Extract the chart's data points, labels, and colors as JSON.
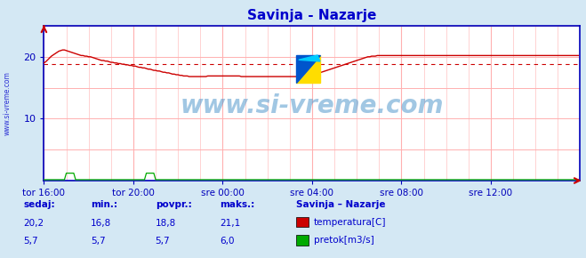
{
  "title": "Savinja - Nazarje",
  "title_color": "#0000cc",
  "bg_color": "#d4e8f4",
  "plot_bg_color": "#ffffff",
  "grid_color": "#ffb0b0",
  "axis_color": "#0000bb",
  "text_color": "#0000cc",
  "xlim": [
    0,
    288
  ],
  "ylim": [
    0,
    25
  ],
  "yticks": [
    10,
    20
  ],
  "xtick_labels": [
    "tor 16:00",
    "tor 20:00",
    "sre 00:00",
    "sre 04:00",
    "sre 08:00",
    "sre 12:00"
  ],
  "xtick_positions": [
    0,
    48,
    96,
    144,
    192,
    240
  ],
  "avg_line_y": 18.8,
  "avg_line_color": "#cc0000",
  "temp_color": "#cc0000",
  "flow_color": "#00aa00",
  "watermark_text": "www.si-vreme.com",
  "watermark_color": "#5599cc",
  "ylabel_text": "www.si-vreme.com",
  "legend_title": "Savinja – Nazarje",
  "legend_items": [
    "temperatura[C]",
    "pretok[m3/s]"
  ],
  "legend_colors": [
    "#cc0000",
    "#00aa00"
  ],
  "stats_labels": [
    "sedaj:",
    "min.:",
    "povpr.:",
    "maks.:"
  ],
  "stats_temp": [
    "20,2",
    "16,8",
    "18,8",
    "21,1"
  ],
  "stats_flow": [
    "5,7",
    "5,7",
    "5,7",
    "6,0"
  ],
  "temp_data": [
    19.0,
    19.2,
    19.5,
    19.8,
    20.1,
    20.3,
    20.5,
    20.7,
    20.9,
    21.0,
    21.1,
    21.1,
    21.0,
    20.9,
    20.8,
    20.7,
    20.6,
    20.5,
    20.4,
    20.3,
    20.2,
    20.2,
    20.1,
    20.1,
    20.0,
    20.0,
    19.9,
    19.8,
    19.7,
    19.6,
    19.5,
    19.4,
    19.4,
    19.3,
    19.3,
    19.2,
    19.1,
    19.1,
    19.0,
    19.0,
    18.9,
    18.9,
    18.8,
    18.8,
    18.7,
    18.7,
    18.6,
    18.6,
    18.5,
    18.5,
    18.4,
    18.3,
    18.3,
    18.2,
    18.2,
    18.1,
    18.0,
    18.0,
    17.9,
    17.8,
    17.8,
    17.7,
    17.7,
    17.6,
    17.5,
    17.5,
    17.4,
    17.4,
    17.3,
    17.2,
    17.2,
    17.1,
    17.1,
    17.0,
    17.0,
    16.9,
    16.9,
    16.9,
    16.8,
    16.8,
    16.8,
    16.8,
    16.8,
    16.8,
    16.8,
    16.8,
    16.8,
    16.8,
    16.9,
    16.9,
    16.9,
    16.9,
    16.9,
    16.9,
    16.9,
    16.9,
    16.9,
    16.9,
    16.9,
    16.9,
    16.9,
    16.9,
    16.9,
    16.9,
    16.9,
    16.9,
    16.8,
    16.8,
    16.8,
    16.8,
    16.8,
    16.8,
    16.8,
    16.8,
    16.8,
    16.8,
    16.8,
    16.8,
    16.8,
    16.8,
    16.8,
    16.8,
    16.8,
    16.8,
    16.8,
    16.8,
    16.8,
    16.8,
    16.8,
    16.8,
    16.8,
    16.8,
    16.8,
    16.8,
    16.8,
    16.8,
    16.8,
    16.9,
    16.9,
    16.9,
    17.0,
    17.0,
    17.0,
    17.0,
    17.1,
    17.1,
    17.2,
    17.3,
    17.4,
    17.5,
    17.6,
    17.7,
    17.8,
    17.9,
    18.0,
    18.1,
    18.2,
    18.3,
    18.4,
    18.5,
    18.6,
    18.7,
    18.8,
    18.9,
    19.0,
    19.1,
    19.2,
    19.3,
    19.4,
    19.5,
    19.6,
    19.7,
    19.8,
    19.9,
    20.0,
    20.0,
    20.1,
    20.1,
    20.1,
    20.2,
    20.2,
    20.2,
    20.2,
    20.2,
    20.2,
    20.2,
    20.2,
    20.2,
    20.2,
    20.2,
    20.2,
    20.2,
    20.2,
    20.2,
    20.2,
    20.2,
    20.2,
    20.2,
    20.2,
    20.2,
    20.2,
    20.2,
    20.2,
    20.2,
    20.2,
    20.2,
    20.2,
    20.2,
    20.2,
    20.2,
    20.2,
    20.2,
    20.2,
    20.2,
    20.2,
    20.2,
    20.2,
    20.2,
    20.2,
    20.2,
    20.2,
    20.2,
    20.2,
    20.2,
    20.2,
    20.2,
    20.2,
    20.2,
    20.2,
    20.2,
    20.2,
    20.2,
    20.2,
    20.2,
    20.2,
    20.2,
    20.2,
    20.2,
    20.2,
    20.2,
    20.2,
    20.2,
    20.2,
    20.2,
    20.2,
    20.2,
    20.2,
    20.2,
    20.2,
    20.2,
    20.2,
    20.2,
    20.2,
    20.2,
    20.2,
    20.2,
    20.2,
    20.2,
    20.2,
    20.2,
    20.2,
    20.2,
    20.2,
    20.2,
    20.2,
    20.2,
    20.2,
    20.2,
    20.2,
    20.2,
    20.2,
    20.2,
    20.2,
    20.2,
    20.2,
    20.2,
    20.2,
    20.2,
    20.2,
    20.2,
    20.2,
    20.2,
    20.2,
    20.2,
    20.2,
    20.2,
    20.2,
    20.2
  ],
  "flow_spike_start": 12,
  "flow_spike_end": 17,
  "flow_spike2_start": 55,
  "flow_spike2_end": 60,
  "flow_base": 0.15,
  "flow_spike_val": 1.2
}
